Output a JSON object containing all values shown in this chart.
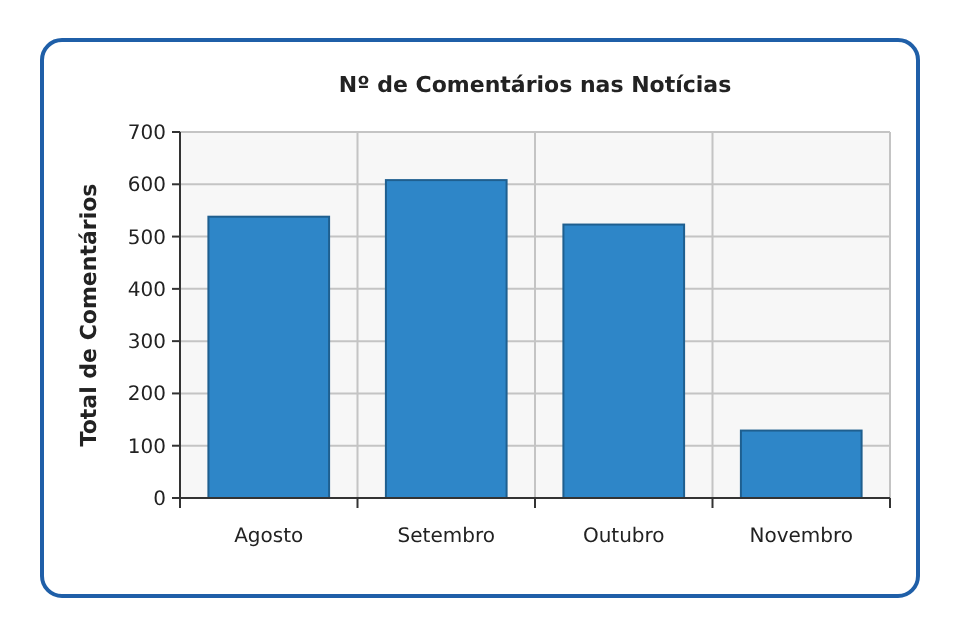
{
  "chart_data": {
    "type": "bar",
    "title": "Nº de Comentários nas Notícias",
    "ylabel": "Total de Comentários",
    "categories": [
      "Agosto",
      "Setembro",
      "Outubro",
      "Novembro"
    ],
    "values": [
      538,
      608,
      523,
      129
    ],
    "color": "#2e86c8",
    "ylim": [
      0,
      700
    ],
    "yticks": [
      0,
      100,
      200,
      300,
      400,
      500,
      600,
      700
    ],
    "grid": true
  }
}
